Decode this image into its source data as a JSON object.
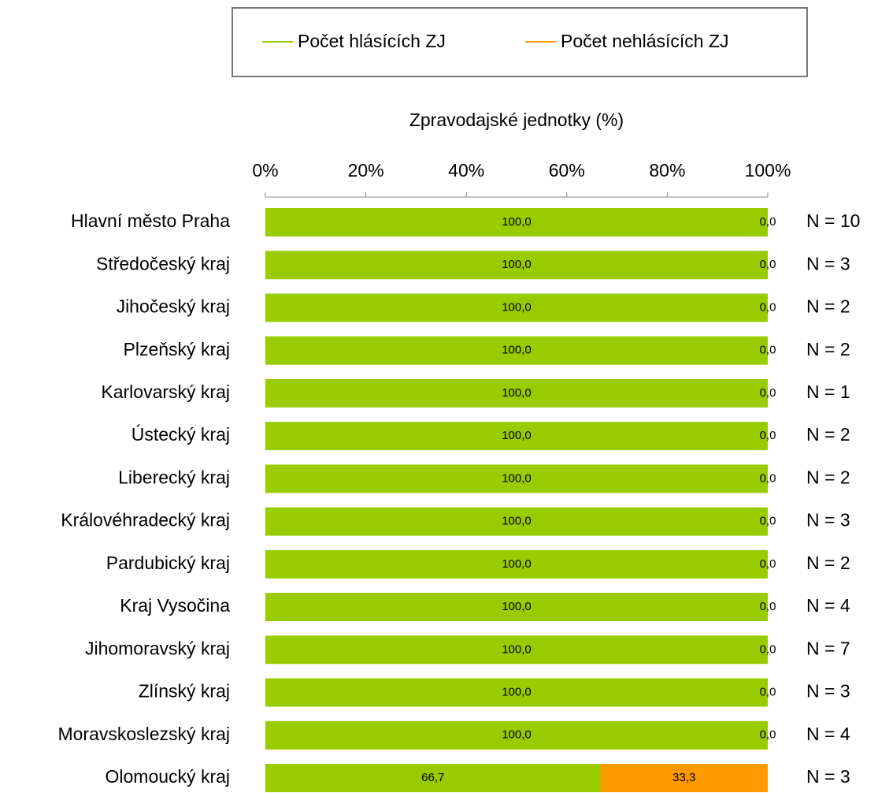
{
  "chart_data": {
    "type": "stacked_bar_horizontal",
    "x_label": "Zpravodajské jednotky (%)",
    "categories": [
      "Hlavní město Praha",
      "Středočeský kraj",
      "Jihočeský kraj",
      "Plzeňský kraj",
      "Karlovarský kraj",
      "Ústecký kraj",
      "Liberecký kraj",
      "Královéhradecký kraj",
      "Pardubický kraj",
      "Kraj Vysočina",
      "Jihomoravský kraj",
      "Zlínský kraj",
      "Moravskoslezský kraj",
      "Olomoucký kraj"
    ],
    "series": [
      {
        "name": "Počet hlásících ZJ",
        "color": "#99cc00",
        "values": [
          100,
          100,
          100,
          100,
          100,
          100,
          100,
          100,
          100,
          100,
          100,
          100,
          100,
          66.7
        ],
        "value_labels": [
          "100,0",
          "100,0",
          "100,0",
          "100,0",
          "100,0",
          "100,0",
          "100,0",
          "100,0",
          "100,0",
          "100,0",
          "100,0",
          "100,0",
          "100,0",
          "66,7"
        ]
      },
      {
        "name": "Počet nehlásících ZJ",
        "color": "#ff9900",
        "values": [
          0,
          0,
          0,
          0,
          0,
          0,
          0,
          0,
          0,
          0,
          0,
          0,
          0,
          33.3
        ],
        "value_labels": [
          "0,0",
          "0,0",
          "0,0",
          "0,0",
          "0,0",
          "0,0",
          "0,0",
          "0,0",
          "0,0",
          "0,0",
          "0,0",
          "0,0",
          "0,0",
          "33,3"
        ]
      }
    ],
    "n_labels": [
      "N = 10",
      "N = 3",
      "N = 2",
      "N = 2",
      "N = 1",
      "N = 2",
      "N = 2",
      "N = 3",
      "N = 2",
      "N = 4",
      "N = 7",
      "N = 3",
      "N = 4",
      "N = 3"
    ],
    "xlim": [
      0,
      100
    ],
    "xticks": [
      {
        "value": 0,
        "label": "0%"
      },
      {
        "value": 20,
        "label": "20%"
      },
      {
        "value": 40,
        "label": "40%"
      },
      {
        "value": 60,
        "label": "60%"
      },
      {
        "value": 80,
        "label": "80%"
      },
      {
        "value": 100,
        "label": "100%"
      }
    ],
    "legend": "top"
  }
}
